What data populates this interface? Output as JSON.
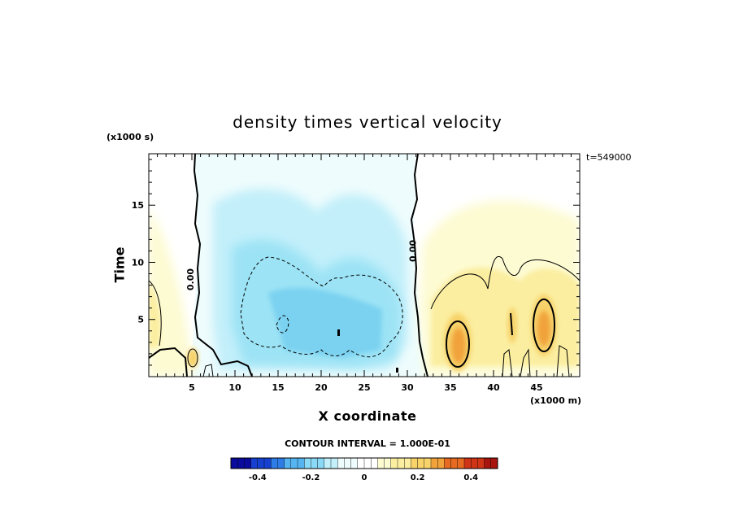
{
  "chart_data": {
    "type": "heatmap",
    "title": "density times vertical velocity",
    "xlabel": "X coordinate",
    "ylabel": "Time",
    "x_units": "(x1000 m)",
    "y_units": "(x1000 s)",
    "timestamp": "t=549000",
    "xlim": [
      0,
      50
    ],
    "ylim": [
      0,
      19.5
    ],
    "x_ticks": [
      "5",
      "10",
      "15",
      "20",
      "25",
      "30",
      "35",
      "40",
      "45"
    ],
    "y_ticks": [
      "5",
      "10",
      "15"
    ],
    "contour_interval": "CONTOUR INTERVAL = 1.000E-01",
    "contour_labels": [
      {
        "text": "0.00",
        "x": 5.2,
        "y": 8.5
      },
      {
        "text": "0.00",
        "x": 31.0,
        "y": 11.0
      }
    ],
    "colorbar": {
      "range": [
        -0.5,
        0.5
      ],
      "ticks": [
        "-0.4",
        "-0.2",
        "0",
        "0.2",
        "0.4"
      ],
      "tick_values": [
        -0.4,
        -0.2,
        0,
        0.2,
        0.4
      ],
      "colors": [
        "#0a0a9c",
        "#1540d0",
        "#2e7de6",
        "#56b4f0",
        "#8ad9f6",
        "#c2effa",
        "#eefcfd",
        "#ffffff",
        "#fdfbd2",
        "#fbeea0",
        "#f7d36a",
        "#f1a23a",
        "#e66a22",
        "#cf3416",
        "#a8140e"
      ]
    },
    "features": [
      {
        "kind": "negative-region",
        "x_range": [
          9.5,
          31
        ],
        "y_range": [
          0.5,
          18
        ],
        "min_value": -0.22
      },
      {
        "kind": "positive-region",
        "x_range": [
          32,
          50
        ],
        "y_range": [
          0.5,
          16
        ],
        "max_value": 0.3
      },
      {
        "kind": "positive-region",
        "x_range": [
          0,
          4
        ],
        "y_range": [
          0.5,
          14
        ],
        "max_value": 0.1
      },
      {
        "kind": "positive-max",
        "x": 36,
        "y": 3.0,
        "value": 0.3
      },
      {
        "kind": "positive-max",
        "x": 46,
        "y": 4.5,
        "value": 0.28
      }
    ]
  }
}
